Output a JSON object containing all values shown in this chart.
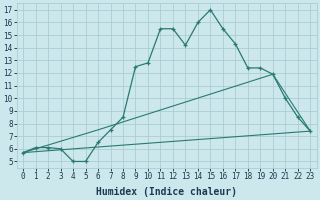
{
  "xlabel": "Humidex (Indice chaleur)",
  "ylabel": "",
  "bg_color": "#cce8ec",
  "grid_color": "#aacdd4",
  "line_color": "#2a7a70",
  "xlim": [
    -0.5,
    23.5
  ],
  "ylim": [
    4.5,
    17.5
  ],
  "xticks": [
    0,
    1,
    2,
    3,
    4,
    5,
    6,
    7,
    8,
    9,
    10,
    11,
    12,
    13,
    14,
    15,
    16,
    17,
    18,
    19,
    20,
    21,
    22,
    23
  ],
  "yticks": [
    5,
    6,
    7,
    8,
    9,
    10,
    11,
    12,
    13,
    14,
    15,
    16,
    17
  ],
  "line1_x": [
    0,
    1,
    2,
    3,
    4,
    5,
    6,
    7,
    8,
    9,
    10,
    11,
    12,
    13,
    14,
    15,
    16,
    17,
    18,
    19,
    20,
    21,
    22,
    23
  ],
  "line1_y": [
    5.7,
    6.1,
    6.1,
    6.0,
    5.0,
    5.0,
    6.5,
    7.5,
    8.5,
    12.5,
    12.8,
    15.5,
    15.5,
    14.2,
    16.0,
    17.0,
    15.5,
    14.3,
    12.4,
    12.4,
    11.9,
    10.0,
    8.5,
    7.4
  ],
  "line2_x": [
    0,
    6,
    20,
    23
  ],
  "line2_y": [
    5.7,
    7.5,
    11.9,
    7.4
  ],
  "line3_x": [
    0,
    23
  ],
  "line3_y": [
    5.7,
    7.4
  ],
  "xlabel_fontsize": 7,
  "tick_fontsize": 5.5
}
